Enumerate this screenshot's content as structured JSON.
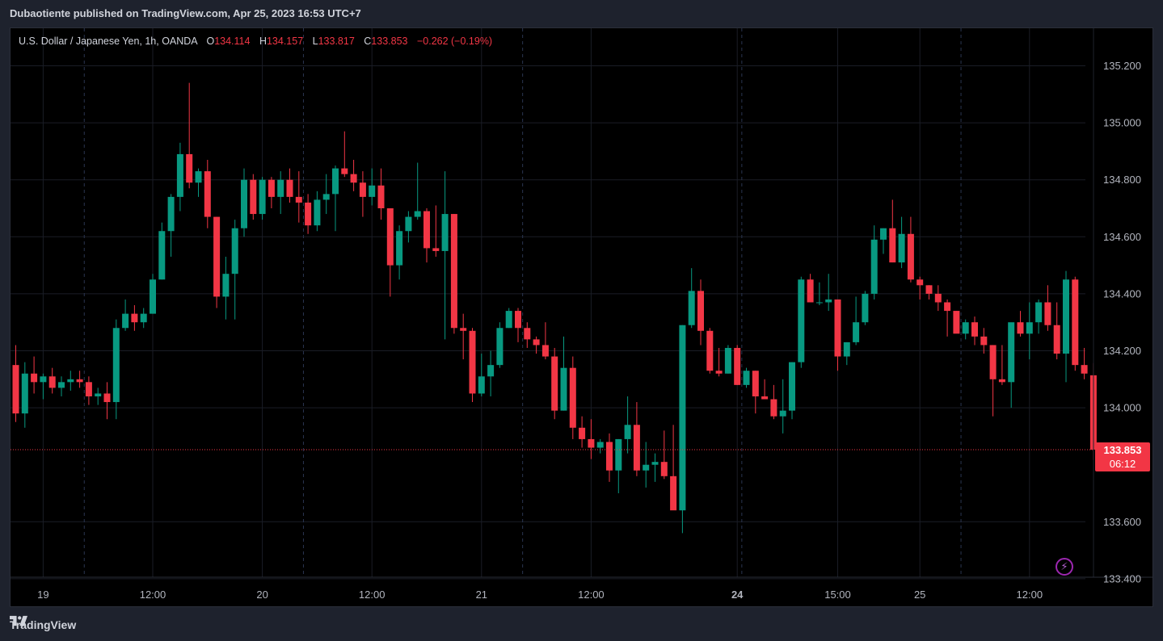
{
  "header": {
    "published_text": "Dubaotiente published on TradingView.com, Apr 25, 2023 16:53 UTC+7"
  },
  "legend": {
    "symbol": "U.S. Dollar / Japanese Yen, 1h, OANDA",
    "open_label": "O",
    "open": "134.114",
    "high_label": "H",
    "high": "134.157",
    "low_label": "L",
    "low": "133.817",
    "close_label": "C",
    "close": "133.853",
    "change": "−0.262 (−0.19%)"
  },
  "price_tag": {
    "price": "133.853",
    "countdown": "06:12"
  },
  "footer": {
    "brand": "TradingView"
  },
  "colors": {
    "up": "#089981",
    "down": "#f23645",
    "background": "#000000",
    "frame": "#1e222d",
    "grid": "#1a1d26",
    "session": "#2a3550"
  },
  "chart_data": {
    "type": "candlestick",
    "title": "U.S. Dollar / Japanese Yen, 1h, OANDA",
    "ylim": [
      133.4,
      135.3
    ],
    "y_ticks": [
      "133.400",
      "133.600",
      "134.000",
      "134.200",
      "134.400",
      "134.600",
      "134.800",
      "135.000",
      "135.200"
    ],
    "x_ticks": [
      {
        "label": "19",
        "index": 3,
        "bold": false
      },
      {
        "label": "12:00",
        "index": 15,
        "bold": false
      },
      {
        "label": "20",
        "index": 27,
        "bold": false
      },
      {
        "label": "12:00",
        "index": 39,
        "bold": false
      },
      {
        "label": "21",
        "index": 51,
        "bold": false
      },
      {
        "label": "12:00",
        "index": 63,
        "bold": false
      },
      {
        "label": "24",
        "index": 79,
        "bold": true
      },
      {
        "label": "15:00",
        "index": 90,
        "bold": false
      },
      {
        "label": "25",
        "index": 99,
        "bold": false
      },
      {
        "label": "12:00",
        "index": 111,
        "bold": false
      }
    ],
    "session_lines": [
      7,
      31,
      55,
      79,
      103
    ],
    "last_price": 133.853,
    "candles": [
      [
        134.15,
        134.22,
        133.95,
        133.98
      ],
      [
        133.98,
        134.16,
        133.93,
        134.12
      ],
      [
        134.12,
        134.18,
        134.05,
        134.09
      ],
      [
        134.09,
        134.12,
        134.03,
        134.11
      ],
      [
        134.11,
        134.14,
        134.05,
        134.07
      ],
      [
        134.07,
        134.11,
        134.04,
        134.09
      ],
      [
        134.09,
        134.13,
        134.06,
        134.1
      ],
      [
        134.1,
        134.13,
        134.07,
        134.09
      ],
      [
        134.09,
        134.11,
        134.01,
        134.04
      ],
      [
        134.04,
        134.07,
        134.01,
        134.05
      ],
      [
        134.05,
        134.09,
        133.96,
        134.02
      ],
      [
        134.02,
        134.31,
        133.96,
        134.28
      ],
      [
        134.28,
        134.38,
        134.27,
        134.33
      ],
      [
        134.33,
        134.36,
        134.27,
        134.3
      ],
      [
        134.3,
        134.35,
        134.28,
        134.33
      ],
      [
        134.33,
        134.47,
        134.33,
        134.45
      ],
      [
        134.45,
        134.65,
        134.45,
        134.62
      ],
      [
        134.62,
        134.75,
        134.53,
        134.74
      ],
      [
        134.74,
        134.93,
        134.69,
        134.89
      ],
      [
        134.89,
        135.14,
        134.77,
        134.79
      ],
      [
        134.79,
        134.84,
        134.74,
        134.83
      ],
      [
        134.83,
        134.87,
        134.63,
        134.67
      ],
      [
        134.67,
        134.67,
        134.35,
        134.39
      ],
      [
        134.39,
        134.53,
        134.31,
        134.47
      ],
      [
        134.47,
        134.66,
        134.31,
        134.63
      ],
      [
        134.63,
        134.84,
        134.6,
        134.8
      ],
      [
        134.8,
        134.82,
        134.66,
        134.68
      ],
      [
        134.68,
        134.81,
        134.66,
        134.8
      ],
      [
        134.8,
        134.81,
        134.7,
        134.74
      ],
      [
        134.74,
        134.83,
        134.68,
        134.8
      ],
      [
        134.8,
        134.84,
        134.72,
        134.74
      ],
      [
        134.74,
        134.83,
        134.65,
        134.72
      ],
      [
        134.72,
        134.75,
        134.61,
        134.64
      ],
      [
        134.64,
        134.76,
        134.62,
        134.73
      ],
      [
        134.73,
        134.82,
        134.68,
        134.75
      ],
      [
        134.75,
        134.85,
        134.62,
        134.84
      ],
      [
        134.84,
        134.97,
        134.81,
        134.82
      ],
      [
        134.82,
        134.87,
        134.76,
        134.79
      ],
      [
        134.79,
        134.83,
        134.67,
        134.74
      ],
      [
        134.74,
        134.84,
        134.71,
        134.78
      ],
      [
        134.78,
        134.84,
        134.66,
        134.7
      ],
      [
        134.7,
        134.7,
        134.39,
        134.5
      ],
      [
        134.5,
        134.64,
        134.45,
        134.62
      ],
      [
        134.62,
        134.69,
        134.58,
        134.67
      ],
      [
        134.67,
        134.86,
        134.66,
        134.69
      ],
      [
        134.69,
        134.7,
        134.51,
        134.56
      ],
      [
        134.56,
        134.71,
        134.53,
        134.55
      ],
      [
        134.55,
        134.83,
        134.24,
        134.68
      ],
      [
        134.68,
        134.68,
        134.26,
        134.28
      ],
      [
        134.28,
        134.33,
        134.17,
        134.27
      ],
      [
        134.27,
        134.28,
        134.02,
        134.05
      ],
      [
        134.05,
        134.19,
        134.04,
        134.11
      ],
      [
        134.11,
        134.2,
        134.04,
        134.15
      ],
      [
        134.15,
        134.3,
        134.14,
        134.28
      ],
      [
        134.28,
        134.35,
        134.28,
        134.34
      ],
      [
        134.34,
        134.35,
        134.23,
        134.28
      ],
      [
        134.28,
        134.3,
        134.21,
        134.24
      ],
      [
        134.24,
        134.25,
        134.19,
        134.22
      ],
      [
        134.22,
        134.3,
        134.17,
        134.18
      ],
      [
        134.18,
        134.21,
        133.96,
        133.99
      ],
      [
        133.99,
        134.25,
        133.99,
        134.14
      ],
      [
        134.14,
        134.18,
        133.89,
        133.93
      ],
      [
        133.93,
        133.97,
        133.86,
        133.89
      ],
      [
        133.89,
        133.96,
        133.82,
        133.86
      ],
      [
        133.86,
        133.89,
        133.84,
        133.88
      ],
      [
        133.88,
        133.91,
        133.74,
        133.78
      ],
      [
        133.78,
        133.89,
        133.7,
        133.89
      ],
      [
        133.89,
        134.04,
        133.84,
        133.94
      ],
      [
        133.94,
        134.02,
        133.76,
        133.78
      ],
      [
        133.78,
        133.88,
        133.72,
        133.8
      ],
      [
        133.8,
        133.84,
        133.74,
        133.81
      ],
      [
        133.81,
        133.92,
        133.75,
        133.76
      ],
      [
        133.76,
        133.94,
        133.65,
        133.64
      ],
      [
        133.64,
        134.29,
        133.56,
        134.29
      ],
      [
        134.29,
        134.49,
        134.28,
        134.41
      ],
      [
        134.41,
        134.45,
        134.22,
        134.27
      ],
      [
        134.27,
        134.28,
        134.12,
        134.13
      ],
      [
        134.13,
        134.21,
        134.11,
        134.12
      ],
      [
        134.12,
        134.22,
        134.12,
        134.21
      ],
      [
        134.21,
        134.22,
        134.08,
        134.08
      ],
      [
        134.08,
        134.14,
        134.07,
        134.13
      ],
      [
        134.13,
        134.13,
        133.98,
        134.04
      ],
      [
        134.04,
        134.1,
        134.03,
        134.03
      ],
      [
        134.03,
        134.08,
        133.96,
        133.97
      ],
      [
        133.97,
        134.1,
        133.91,
        133.99
      ],
      [
        133.99,
        134.16,
        133.96,
        134.16
      ],
      [
        134.16,
        134.46,
        134.14,
        134.45
      ],
      [
        134.45,
        134.47,
        134.37,
        134.37
      ],
      [
        134.37,
        134.44,
        134.36,
        134.37
      ],
      [
        134.37,
        134.47,
        134.34,
        134.38
      ],
      [
        134.38,
        134.38,
        134.13,
        134.18
      ],
      [
        134.18,
        134.23,
        134.15,
        134.23
      ],
      [
        134.23,
        134.39,
        134.22,
        134.3
      ],
      [
        134.3,
        134.41,
        134.29,
        134.4
      ],
      [
        134.4,
        134.64,
        134.38,
        134.59
      ],
      [
        134.59,
        134.63,
        134.54,
        134.63
      ],
      [
        134.63,
        134.73,
        134.51,
        134.51
      ],
      [
        134.51,
        134.67,
        134.49,
        134.61
      ],
      [
        134.61,
        134.67,
        134.44,
        134.45
      ],
      [
        134.45,
        134.46,
        134.38,
        134.43
      ],
      [
        134.43,
        134.43,
        134.38,
        134.4
      ],
      [
        134.4,
        134.43,
        134.34,
        134.37
      ],
      [
        134.37,
        134.38,
        134.25,
        134.34
      ],
      [
        134.34,
        134.34,
        134.27,
        134.26
      ],
      [
        134.26,
        134.31,
        134.24,
        134.3
      ],
      [
        134.3,
        134.32,
        134.22,
        134.25
      ],
      [
        134.25,
        134.28,
        134.19,
        134.22
      ],
      [
        134.22,
        134.22,
        133.97,
        134.1
      ],
      [
        134.1,
        134.22,
        134.08,
        134.09
      ],
      [
        134.09,
        134.29,
        134.0,
        134.3
      ],
      [
        134.3,
        134.34,
        134.25,
        134.26
      ],
      [
        134.26,
        134.37,
        134.17,
        134.3
      ],
      [
        134.3,
        134.38,
        134.26,
        134.37
      ],
      [
        134.37,
        134.43,
        134.27,
        134.29
      ],
      [
        134.29,
        134.37,
        134.17,
        134.19
      ],
      [
        134.19,
        134.48,
        134.09,
        134.45
      ],
      [
        134.45,
        134.46,
        134.13,
        134.15
      ],
      [
        134.15,
        134.21,
        134.1,
        134.12
      ],
      [
        134.114,
        134.157,
        133.817,
        133.853
      ]
    ]
  }
}
